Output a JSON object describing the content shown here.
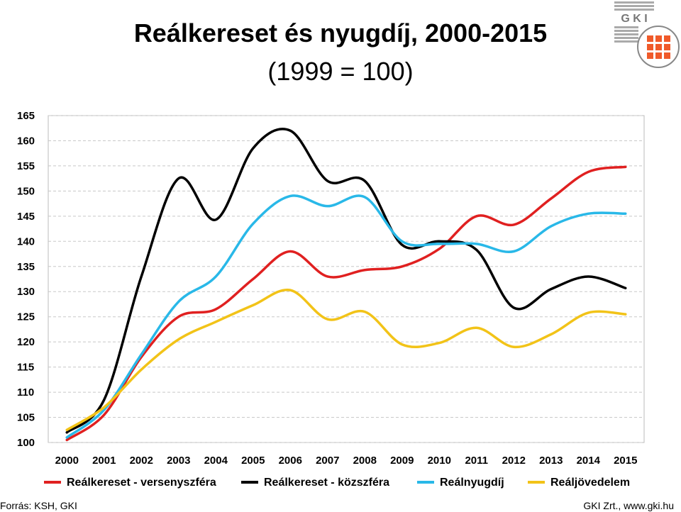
{
  "header": {
    "title": "Reálkereset és nyugdíj, 2000-2015",
    "subtitle": "(1999 = 100)"
  },
  "logo": {
    "text": "G K I",
    "icon": "gki-logo-icon"
  },
  "footer": {
    "source": "Forrás: KSH, GKI",
    "credit": "GKI Zrt., www.gki.hu"
  },
  "chart_data": {
    "type": "line",
    "categories": [
      "2000",
      "2001",
      "2002",
      "2003",
      "2004",
      "2005",
      "2006",
      "2007",
      "2008",
      "2009",
      "2010",
      "2011",
      "2012",
      "2013",
      "2014",
      "2015"
    ],
    "ylim": [
      100,
      165
    ],
    "yticks": [
      100,
      105,
      110,
      115,
      120,
      125,
      130,
      135,
      140,
      145,
      150,
      155,
      160,
      165
    ],
    "grid": true,
    "legend_position": "bottom",
    "series": [
      {
        "name": "Reálkereset - versenyszféra",
        "color": "#e02020",
        "values": [
          100.5,
          105.5,
          117.0,
          125.0,
          126.5,
          132.5,
          138.0,
          133.0,
          134.3,
          135.0,
          138.5,
          145.0,
          143.3,
          148.5,
          153.8,
          154.8
        ]
      },
      {
        "name": "Reálkereset - közszféra",
        "color": "#000000",
        "values": [
          102.0,
          108.5,
          133.0,
          152.5,
          144.3,
          158.5,
          162.0,
          152.0,
          152.0,
          139.3,
          140.0,
          138.3,
          126.8,
          130.5,
          133.0,
          130.7
        ]
      },
      {
        "name": "Reálnyugdíj",
        "color": "#29b8e8",
        "values": [
          101.0,
          106.5,
          117.5,
          128.0,
          133.0,
          143.5,
          149.0,
          147.0,
          148.8,
          140.0,
          139.5,
          139.5,
          138.0,
          143.0,
          145.5,
          145.5
        ]
      },
      {
        "name": "Reáljövedelem",
        "color": "#f2c318",
        "values": [
          102.5,
          107.0,
          114.5,
          120.5,
          124.0,
          127.3,
          130.3,
          124.5,
          126.0,
          119.5,
          119.8,
          122.8,
          119.0,
          121.5,
          125.8,
          125.5
        ]
      }
    ]
  }
}
